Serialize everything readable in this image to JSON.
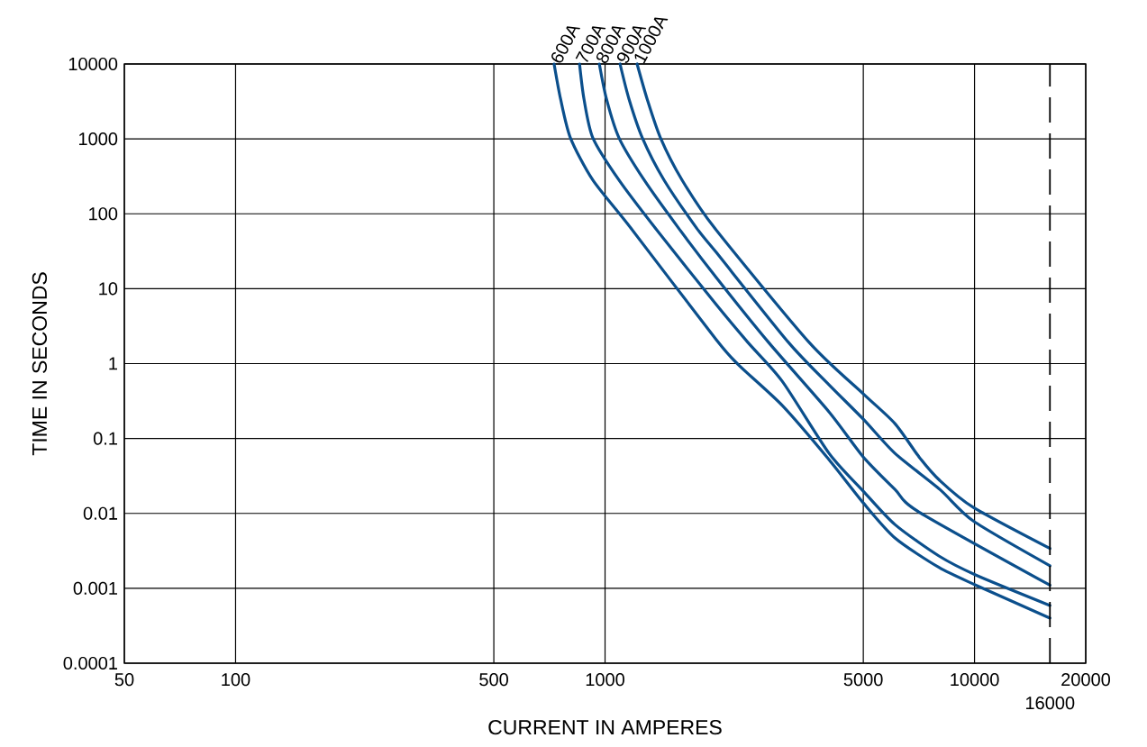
{
  "chart_data": {
    "type": "line",
    "xlabel": "CURRENT IN AMPERES",
    "ylabel": "TIME IN SECONDS",
    "log": "xy",
    "grid": true,
    "xlim": [
      50,
      20000
    ],
    "xticks": [
      50,
      100,
      500,
      1000,
      5000,
      10000,
      20000
    ],
    "ylim": [
      0.0001,
      10000
    ],
    "yticks": [
      0.0001,
      0.001,
      0.01,
      0.1,
      1,
      10,
      100,
      1000,
      10000
    ],
    "ref_lines": [
      {
        "axis": "x",
        "value": 16000,
        "label": "16000",
        "line_style": "dashed",
        "color": "#000000"
      }
    ],
    "series": [
      {
        "name": "600A",
        "color": "#0b4f8c",
        "x": [
          728,
          758,
          806,
          927,
          1174,
          2000,
          2300,
          3020,
          4040,
          5000,
          6090,
          8010,
          10090,
          16000
        ],
        "values": [
          10000,
          3400,
          1030,
          281,
          64.5,
          2.08,
          0.957,
          0.275,
          0.0521,
          0.0138,
          0.0047,
          0.0019,
          0.0011,
          0.0004
        ]
      },
      {
        "name": "700A",
        "color": "#0b4f8c",
        "x": [
          853,
          877,
          927,
          1091,
          1367,
          2000,
          2437,
          3017,
          4040,
          5000,
          6090,
          8010,
          10090,
          16000
        ],
        "values": [
          10000,
          3400,
          1030,
          281,
          64.5,
          6.12,
          1.91,
          0.581,
          0.0633,
          0.0198,
          0.0071,
          0.0027,
          0.0015,
          0.00059
        ]
      },
      {
        "name": "800A",
        "color": "#0b4f8c",
        "x": [
          965,
          1009,
          1091,
          1277,
          1581,
          2000,
          2773,
          4040,
          5000,
          6090,
          7080,
          16000
        ],
        "values": [
          10000,
          3400,
          1030,
          281,
          64.5,
          14.1,
          1.91,
          0.226,
          0.0566,
          0.0209,
          0.0104,
          0.0011
        ]
      },
      {
        "name": "900A",
        "color": "#0b4f8c",
        "x": [
          1098,
          1161,
          1262,
          1445,
          1769,
          2000,
          3139,
          4040,
          5000,
          6090,
          8055,
          9930,
          16000
        ],
        "values": [
          10000,
          3400,
          1030,
          281,
          64.5,
          30.5,
          1.91,
          0.52,
          0.181,
          0.0633,
          0.0209,
          0.0079,
          0.002
        ]
      },
      {
        "name": "1000A",
        "color": "#0b4f8c",
        "x": [
          1221,
          1300,
          1413,
          1617,
          1980,
          3571,
          5000,
          6090,
          7080,
          8055,
          9930,
          16000
        ],
        "values": [
          10000,
          3400,
          1030,
          281,
          64.5,
          1.91,
          0.394,
          0.158,
          0.0566,
          0.0275,
          0.012,
          0.0034
        ]
      }
    ]
  }
}
